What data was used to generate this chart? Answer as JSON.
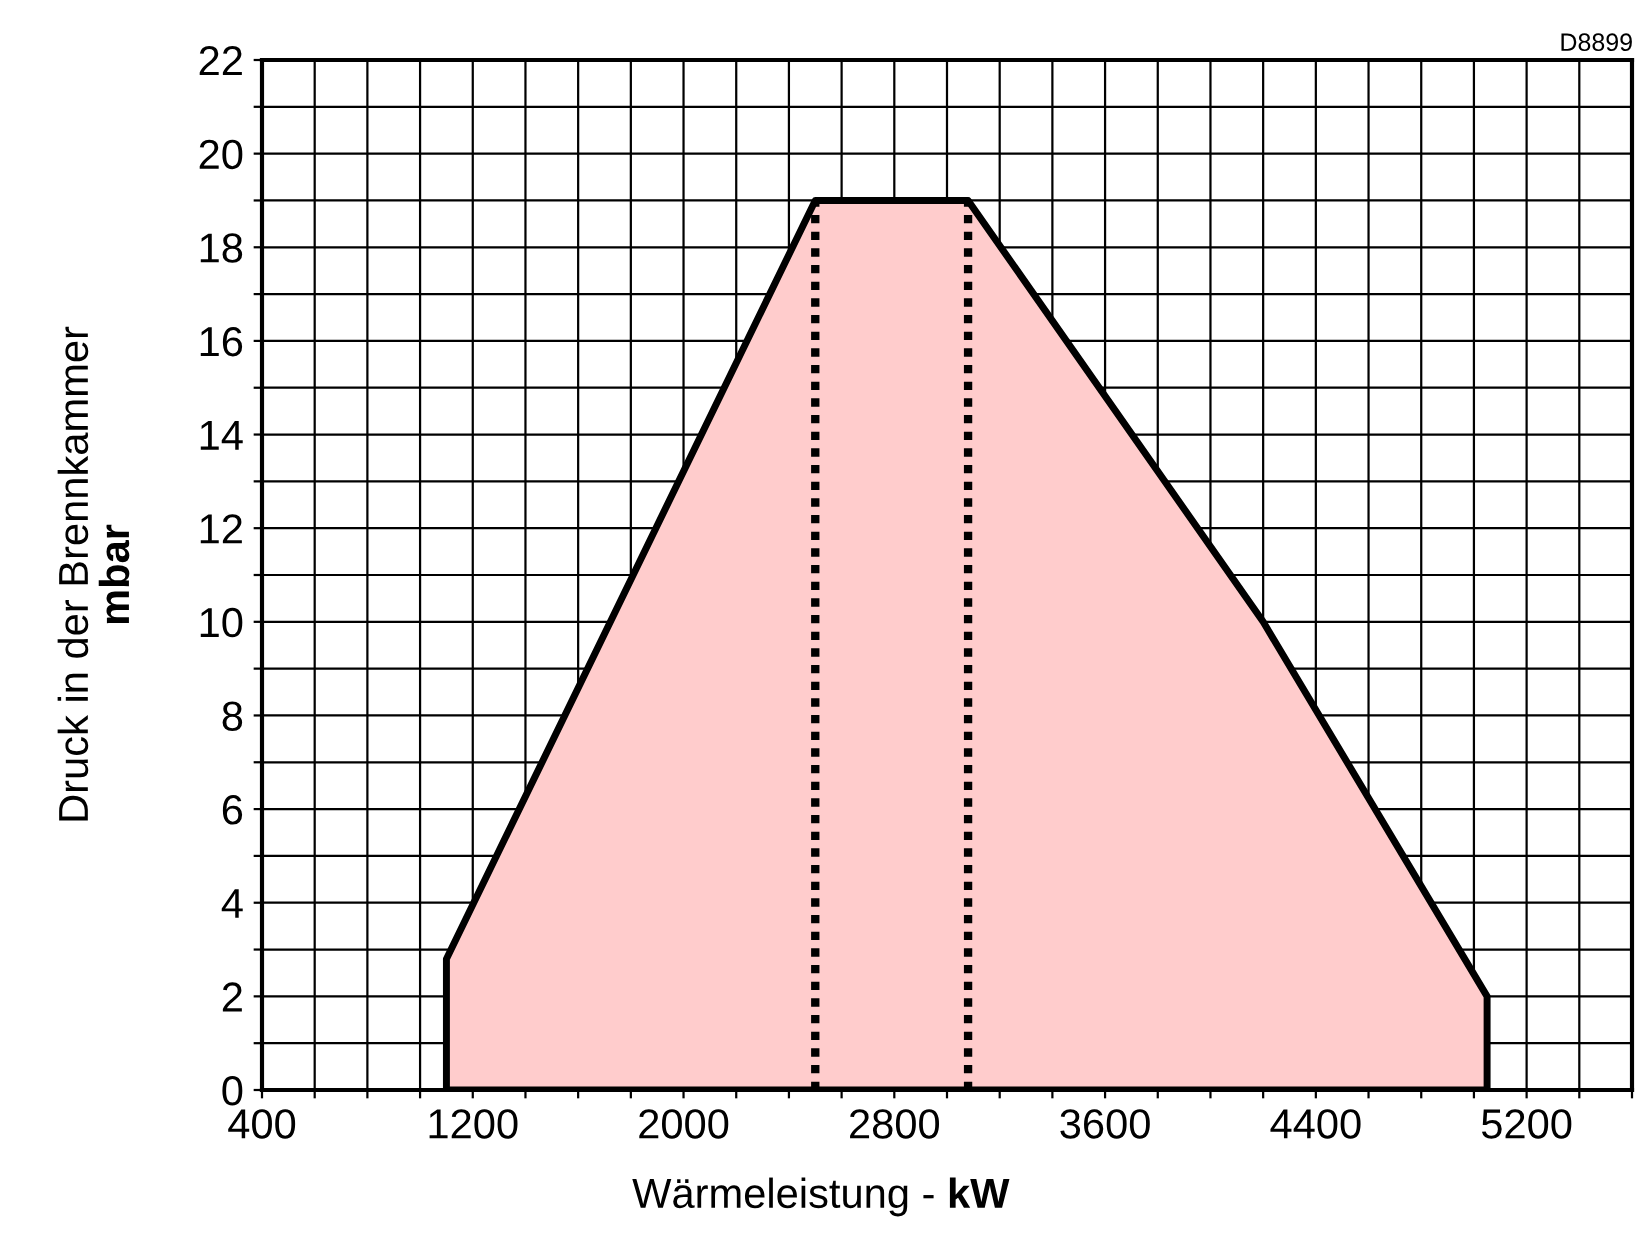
{
  "chart_data": {
    "type": "area",
    "xlabel": "Wärmeleistung - kW",
    "ylabel": "Druck in der Brennkammer\nmbar",
    "annotations": [
      "D8899"
    ],
    "series": [
      {
        "color": "#ffcccc",
        "x": [
          1100,
          1100,
          2500,
          3080,
          4200,
          5050,
          5050
        ],
        "values": [
          0,
          2.8,
          19,
          19,
          10,
          2,
          0
        ]
      },
      {
        "type": "line",
        "color": "#000000",
        "line_style": "dotted",
        "x": [
          2500,
          2500
        ],
        "values": [
          0,
          19
        ]
      },
      {
        "type": "line",
        "color": "#000000",
        "line_style": "dotted",
        "x": [
          3080,
          3080
        ],
        "values": [
          0,
          19
        ]
      }
    ],
    "xlim": [
      400,
      5600
    ],
    "xticks": [
      400,
      {
        "value": 600,
        "label": null
      },
      {
        "value": 800,
        "label": null
      },
      {
        "value": 1000,
        "label": null
      },
      1200,
      {
        "value": 1400,
        "label": null
      },
      {
        "value": 1600,
        "label": null
      },
      {
        "value": 1800,
        "label": null
      },
      2000,
      {
        "value": 2200,
        "label": null
      },
      {
        "value": 2400,
        "label": null
      },
      {
        "value": 2600,
        "label": null
      },
      2800,
      {
        "value": 3000,
        "label": null
      },
      {
        "value": 3200,
        "label": null
      },
      {
        "value": 3400,
        "label": null
      },
      3600,
      {
        "value": 3800,
        "label": null
      },
      {
        "value": 4000,
        "label": null
      },
      {
        "value": 4200,
        "label": null
      },
      4400,
      {
        "value": 4600,
        "label": null
      },
      {
        "value": 4800,
        "label": null
      },
      {
        "value": 5000,
        "label": null
      },
      5200,
      {
        "value": 5400,
        "label": null
      },
      {
        "value": 5600,
        "label": null
      }
    ],
    "ylim": [
      0,
      22
    ],
    "yticks": [
      0,
      {
        "value": 1,
        "label": null
      },
      2,
      {
        "value": 3,
        "label": null
      },
      4,
      {
        "value": 5,
        "label": null
      },
      6,
      {
        "value": 7,
        "label": null
      },
      8,
      {
        "value": 9,
        "label": null
      },
      10,
      {
        "value": 11,
        "label": null
      },
      12,
      {
        "value": 13,
        "label": null
      },
      14,
      {
        "value": 15,
        "label": null
      },
      16,
      {
        "value": 17,
        "label": null
      },
      18,
      {
        "value": 19,
        "label": null
      },
      20,
      {
        "value": 21,
        "label": null
      },
      22
    ],
    "grid": true
  }
}
